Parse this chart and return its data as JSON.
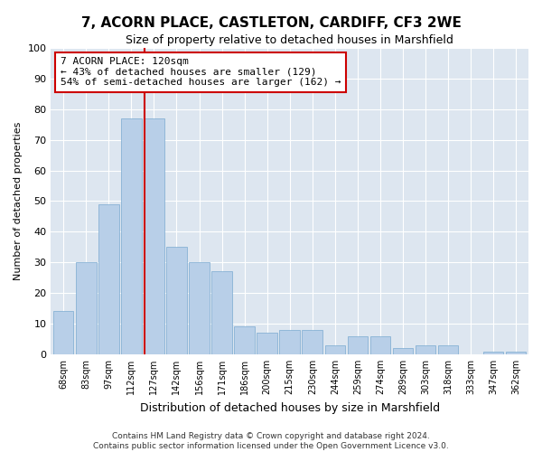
{
  "title1": "7, ACORN PLACE, CASTLETON, CARDIFF, CF3 2WE",
  "title2": "Size of property relative to detached houses in Marshfield",
  "xlabel": "Distribution of detached houses by size in Marshfield",
  "ylabel": "Number of detached properties",
  "categories": [
    "68sqm",
    "83sqm",
    "97sqm",
    "112sqm",
    "127sqm",
    "142sqm",
    "156sqm",
    "171sqm",
    "186sqm",
    "200sqm",
    "215sqm",
    "230sqm",
    "244sqm",
    "259sqm",
    "274sqm",
    "289sqm",
    "303sqm",
    "318sqm",
    "333sqm",
    "347sqm",
    "362sqm"
  ],
  "values": [
    14,
    30,
    49,
    77,
    77,
    35,
    30,
    27,
    9,
    7,
    8,
    8,
    3,
    6,
    6,
    2,
    3,
    3,
    0,
    1,
    1
  ],
  "bar_color": "#b8cfe8",
  "bar_edge_color": "#7aaad0",
  "vline_color": "#cc0000",
  "annotation_text": "7 ACORN PLACE: 120sqm\n← 43% of detached houses are smaller (129)\n54% of semi-detached houses are larger (162) →",
  "annotation_box_color": "#ffffff",
  "annotation_box_edge": "#cc0000",
  "ylim": [
    0,
    100
  ],
  "yticks": [
    0,
    10,
    20,
    30,
    40,
    50,
    60,
    70,
    80,
    90,
    100
  ],
  "footer1": "Contains HM Land Registry data © Crown copyright and database right 2024.",
  "footer2": "Contains public sector information licensed under the Open Government Licence v3.0.",
  "background_color": "#dde6f0"
}
